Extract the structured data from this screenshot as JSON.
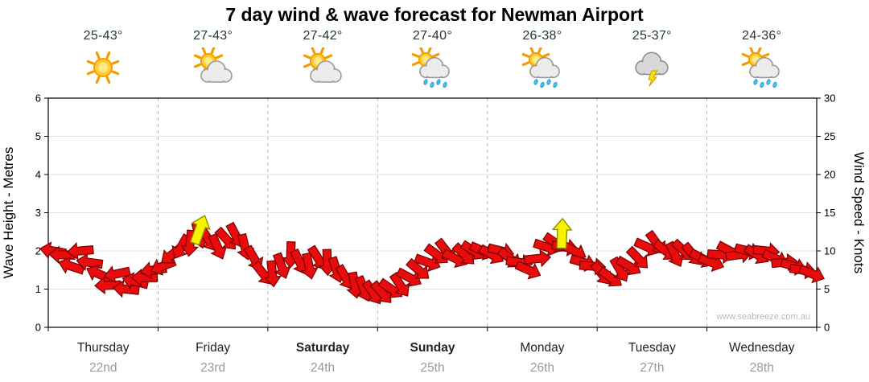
{
  "title": "7 day wind & wave forecast for Newman Airport",
  "days": [
    {
      "name": "Thursday",
      "date": "22nd",
      "temp": "25-43°",
      "icon": "sunny",
      "bold": false
    },
    {
      "name": "Friday",
      "date": "23rd",
      "temp": "27-43°",
      "icon": "sun-cloud",
      "bold": false
    },
    {
      "name": "Saturday",
      "date": "24th",
      "temp": "27-42°",
      "icon": "sun-cloud",
      "bold": true
    },
    {
      "name": "Sunday",
      "date": "25th",
      "temp": "27-40°",
      "icon": "sun-cloud-rain",
      "bold": true
    },
    {
      "name": "Monday",
      "date": "26th",
      "temp": "26-38°",
      "icon": "sun-cloud-rain",
      "bold": false
    },
    {
      "name": "Tuesday",
      "date": "27th",
      "temp": "25-37°",
      "icon": "storm",
      "bold": false
    },
    {
      "name": "Wednesday",
      "date": "28th",
      "temp": "24-36°",
      "icon": "sun-cloud-rain",
      "bold": false
    }
  ],
  "chart_data": {
    "type": "scatter",
    "subtype": "wind-direction-arrows",
    "title": "7 day wind & wave forecast for Newman Airport",
    "ylabel_left": "Wave Height - Metres",
    "ylabel_right": "Wind Speed - Knots",
    "ylim_left": [
      0,
      6
    ],
    "ylim_right": [
      0,
      30
    ],
    "yticks_left": [
      "0",
      "1",
      "2",
      "3",
      "4",
      "5",
      "6"
    ],
    "yticks_right": [
      "0",
      "5",
      "10",
      "15",
      "20",
      "25",
      "30"
    ],
    "x_categories": [
      "Thursday 22nd",
      "Friday 23rd",
      "Saturday 24th",
      "Sunday 25th",
      "Monday 26th",
      "Tuesday 27th",
      "Wednesday 28th"
    ],
    "grid": {
      "horizontal": true,
      "vertical_day_separators": "dashed"
    },
    "watermark": "www.seabreeze.com.au",
    "colors": {
      "arrow_fill": "#e80c0c",
      "arrow_stroke": "#7a0000",
      "yellow_fill": "#f7f200",
      "yellow_stroke": "#8c8c00"
    },
    "wind": {
      "units": "knots",
      "per_day_knots": [
        [
          10,
          9.5,
          8,
          10,
          8.5,
          7,
          5.5,
          7,
          5,
          6,
          6.5,
          7.5
        ],
        [
          8,
          9.5,
          10.5,
          11,
          12,
          11.5,
          10.5,
          11.5,
          12,
          10.5,
          9,
          7
        ],
        [
          7,
          8,
          9.5,
          8.5,
          8,
          9,
          8.5,
          7.5,
          6.5,
          5.5,
          5,
          4.5
        ],
        [
          4.5,
          5,
          5.5,
          6.5,
          7.5,
          8.5,
          9.5,
          10,
          9,
          9.5,
          10,
          10
        ],
        [
          9.5,
          10,
          9,
          8.5,
          7.5,
          9,
          10.5,
          11,
          10.5,
          10,
          8.5,
          8
        ],
        [
          7,
          6.5,
          7.5,
          8,
          9,
          10.5,
          11,
          10,
          9.5,
          10,
          9.5,
          9
        ],
        [
          8.5,
          9.5,
          10,
          9.5,
          10,
          9.5,
          10,
          9,
          8.5,
          8,
          7.5,
          7
        ]
      ],
      "per_day_dirs": [
        [
          190,
          182,
          198,
          175,
          188,
          204,
          178,
          168,
          186,
          194,
          180,
          172
        ],
        [
          158,
          142,
          120,
          96,
          74,
          58,
          66,
          48,
          62,
          76,
          60,
          52
        ],
        [
          84,
          70,
          92,
          64,
          78,
          58,
          88,
          72,
          60,
          80,
          68,
          56
        ],
        [
          48,
          34,
          56,
          28,
          40,
          20,
          36,
          52,
          26,
          44,
          32,
          24
        ],
        [
          30,
          14,
          38,
          8,
          24,
          -6,
          18,
          34,
          10,
          28,
          16,
          4
        ],
        [
          52,
          36,
          60,
          30,
          46,
          24,
          54,
          38,
          64,
          42,
          50,
          28
        ],
        [
          20,
          4,
          28,
          -8,
          14,
          32,
          6,
          24,
          -4,
          16,
          8,
          22
        ]
      ],
      "yellow": [
        {
          "day_frac": 1.38,
          "knots": 12.8,
          "dir": -70
        },
        {
          "day_frac": 4.68,
          "knots": 12.3,
          "dir": -88
        }
      ]
    }
  }
}
